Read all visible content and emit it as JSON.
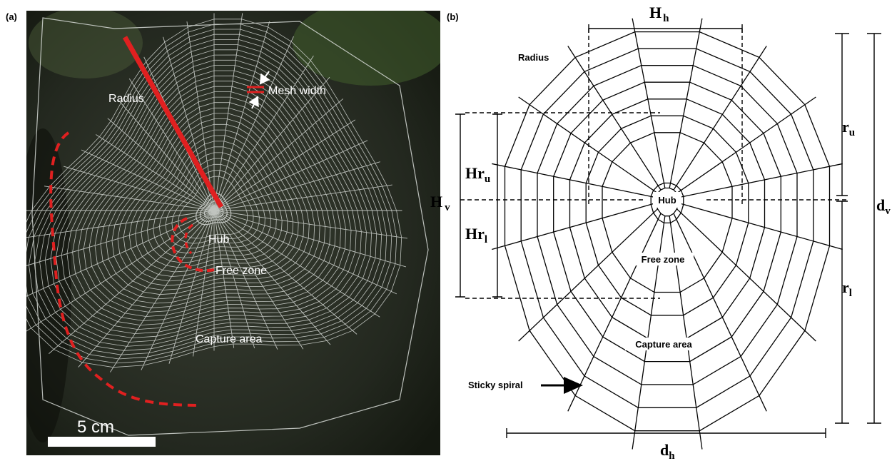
{
  "panel_a": {
    "label": "(a)",
    "radius": "Radius",
    "mesh_width": "Mesh width",
    "hub": "Hub",
    "free_zone": "Free zone",
    "capture_area": "Capture area",
    "scale_bar": "5 cm"
  },
  "panel_b": {
    "label": "(b)",
    "radius": "Radius",
    "hub": "Hub",
    "free_zone": "Free zone",
    "capture_area": "Capture area",
    "sticky_spiral": "Sticky spiral",
    "dimensions": {
      "Hh": {
        "symbol": "H",
        "sub": "h"
      },
      "Hv": {
        "symbol": "H",
        "sub": "v"
      },
      "Hru": {
        "symbol": "Hr",
        "sub": "u"
      },
      "Hrl": {
        "symbol": "Hr",
        "sub": "l"
      },
      "ru": {
        "symbol": "r",
        "sub": "u"
      },
      "rl": {
        "symbol": "r",
        "sub": "l"
      },
      "dv": {
        "symbol": "d",
        "sub": "v"
      },
      "dh": {
        "symbol": "d",
        "sub": "h"
      }
    }
  }
}
